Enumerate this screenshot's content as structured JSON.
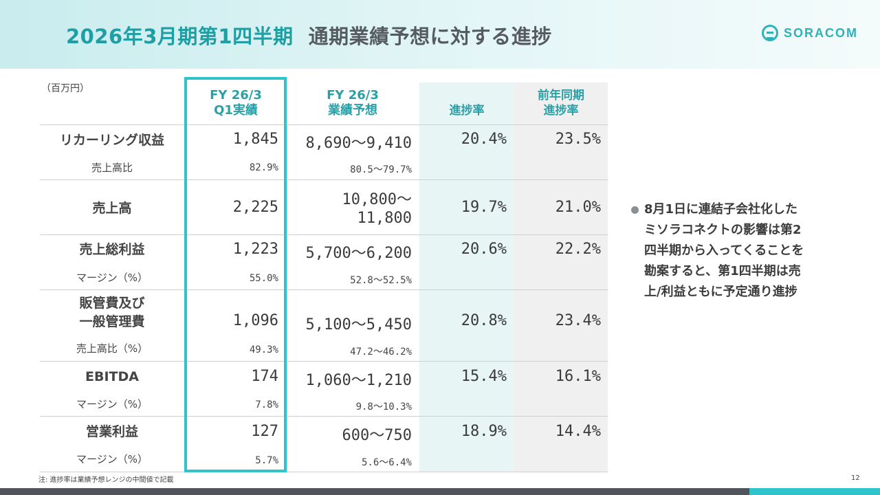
{
  "header": {
    "title": "2026年3月期第1四半期",
    "subtitle": "通期業績予想に対する進捗",
    "logo_text": "SORACOM"
  },
  "table": {
    "unit": "（百万円）",
    "columns": {
      "q1_line1": "FY 26/3",
      "q1_line2": "Q1実績",
      "forecast_line1": "FY 26/3",
      "forecast_line2": "業績予想",
      "progress": "進捗率",
      "prev_line1": "前年同期",
      "prev_line2": "進捗率"
    },
    "rows": [
      {
        "label": "リカーリング収益",
        "q1": "1,845",
        "forecast": "8,690～9,410",
        "progress": "20.4%",
        "prev": "23.5%",
        "sub_label": "売上高比",
        "sub_q1": "82.9%",
        "sub_forecast": "80.5～79.7%"
      },
      {
        "label": "売上高",
        "q1": "2,225",
        "forecast_line1": "10,800～",
        "forecast_line2": "11,800",
        "progress": "19.7%",
        "prev": "21.0%"
      },
      {
        "label": "売上総利益",
        "q1": "1,223",
        "forecast": "5,700～6,200",
        "progress": "20.6%",
        "prev": "22.2%",
        "sub_label": "マージン（%）",
        "sub_q1": "55.0%",
        "sub_forecast": "52.8～52.5%"
      },
      {
        "label_line1": "販管費及び",
        "label_line2": "一般管理費",
        "q1": "1,096",
        "forecast": "5,100～5,450",
        "progress": "20.8%",
        "prev": "23.4%",
        "sub_label": "売上高比（%）",
        "sub_q1": "49.3%",
        "sub_forecast": "47.2～46.2%"
      },
      {
        "label": "EBITDA",
        "q1": "174",
        "forecast": "1,060～1,210",
        "progress": "15.4%",
        "prev": "16.1%",
        "sub_label": "マージン（%）",
        "sub_q1": "7.8%",
        "sub_forecast": "9.8～10.3%"
      },
      {
        "label": "営業利益",
        "q1": "127",
        "forecast": "600～750",
        "progress": "18.9%",
        "prev": "14.4%",
        "sub_label": "マージン（%）",
        "sub_q1": "5.7%",
        "sub_forecast": "5.6～6.4%"
      }
    ]
  },
  "bullet": {
    "lines": [
      "8月1日に連結子会社化した",
      "ミソラコネクトの影響は第2",
      "四半期から入ってくることを",
      "勘案すると、第1四半期は売",
      "上/利益ともに予定通り進捗"
    ]
  },
  "footer": {
    "note": "注: 進捗率は業績予想レンジの中間値で記載",
    "page_number": "12"
  },
  "colors": {
    "accent": "#2ec4c9",
    "title": "#1f9ea4",
    "progress_shade": "#e8f5f5",
    "prev_shade": "#f0f0f0"
  }
}
